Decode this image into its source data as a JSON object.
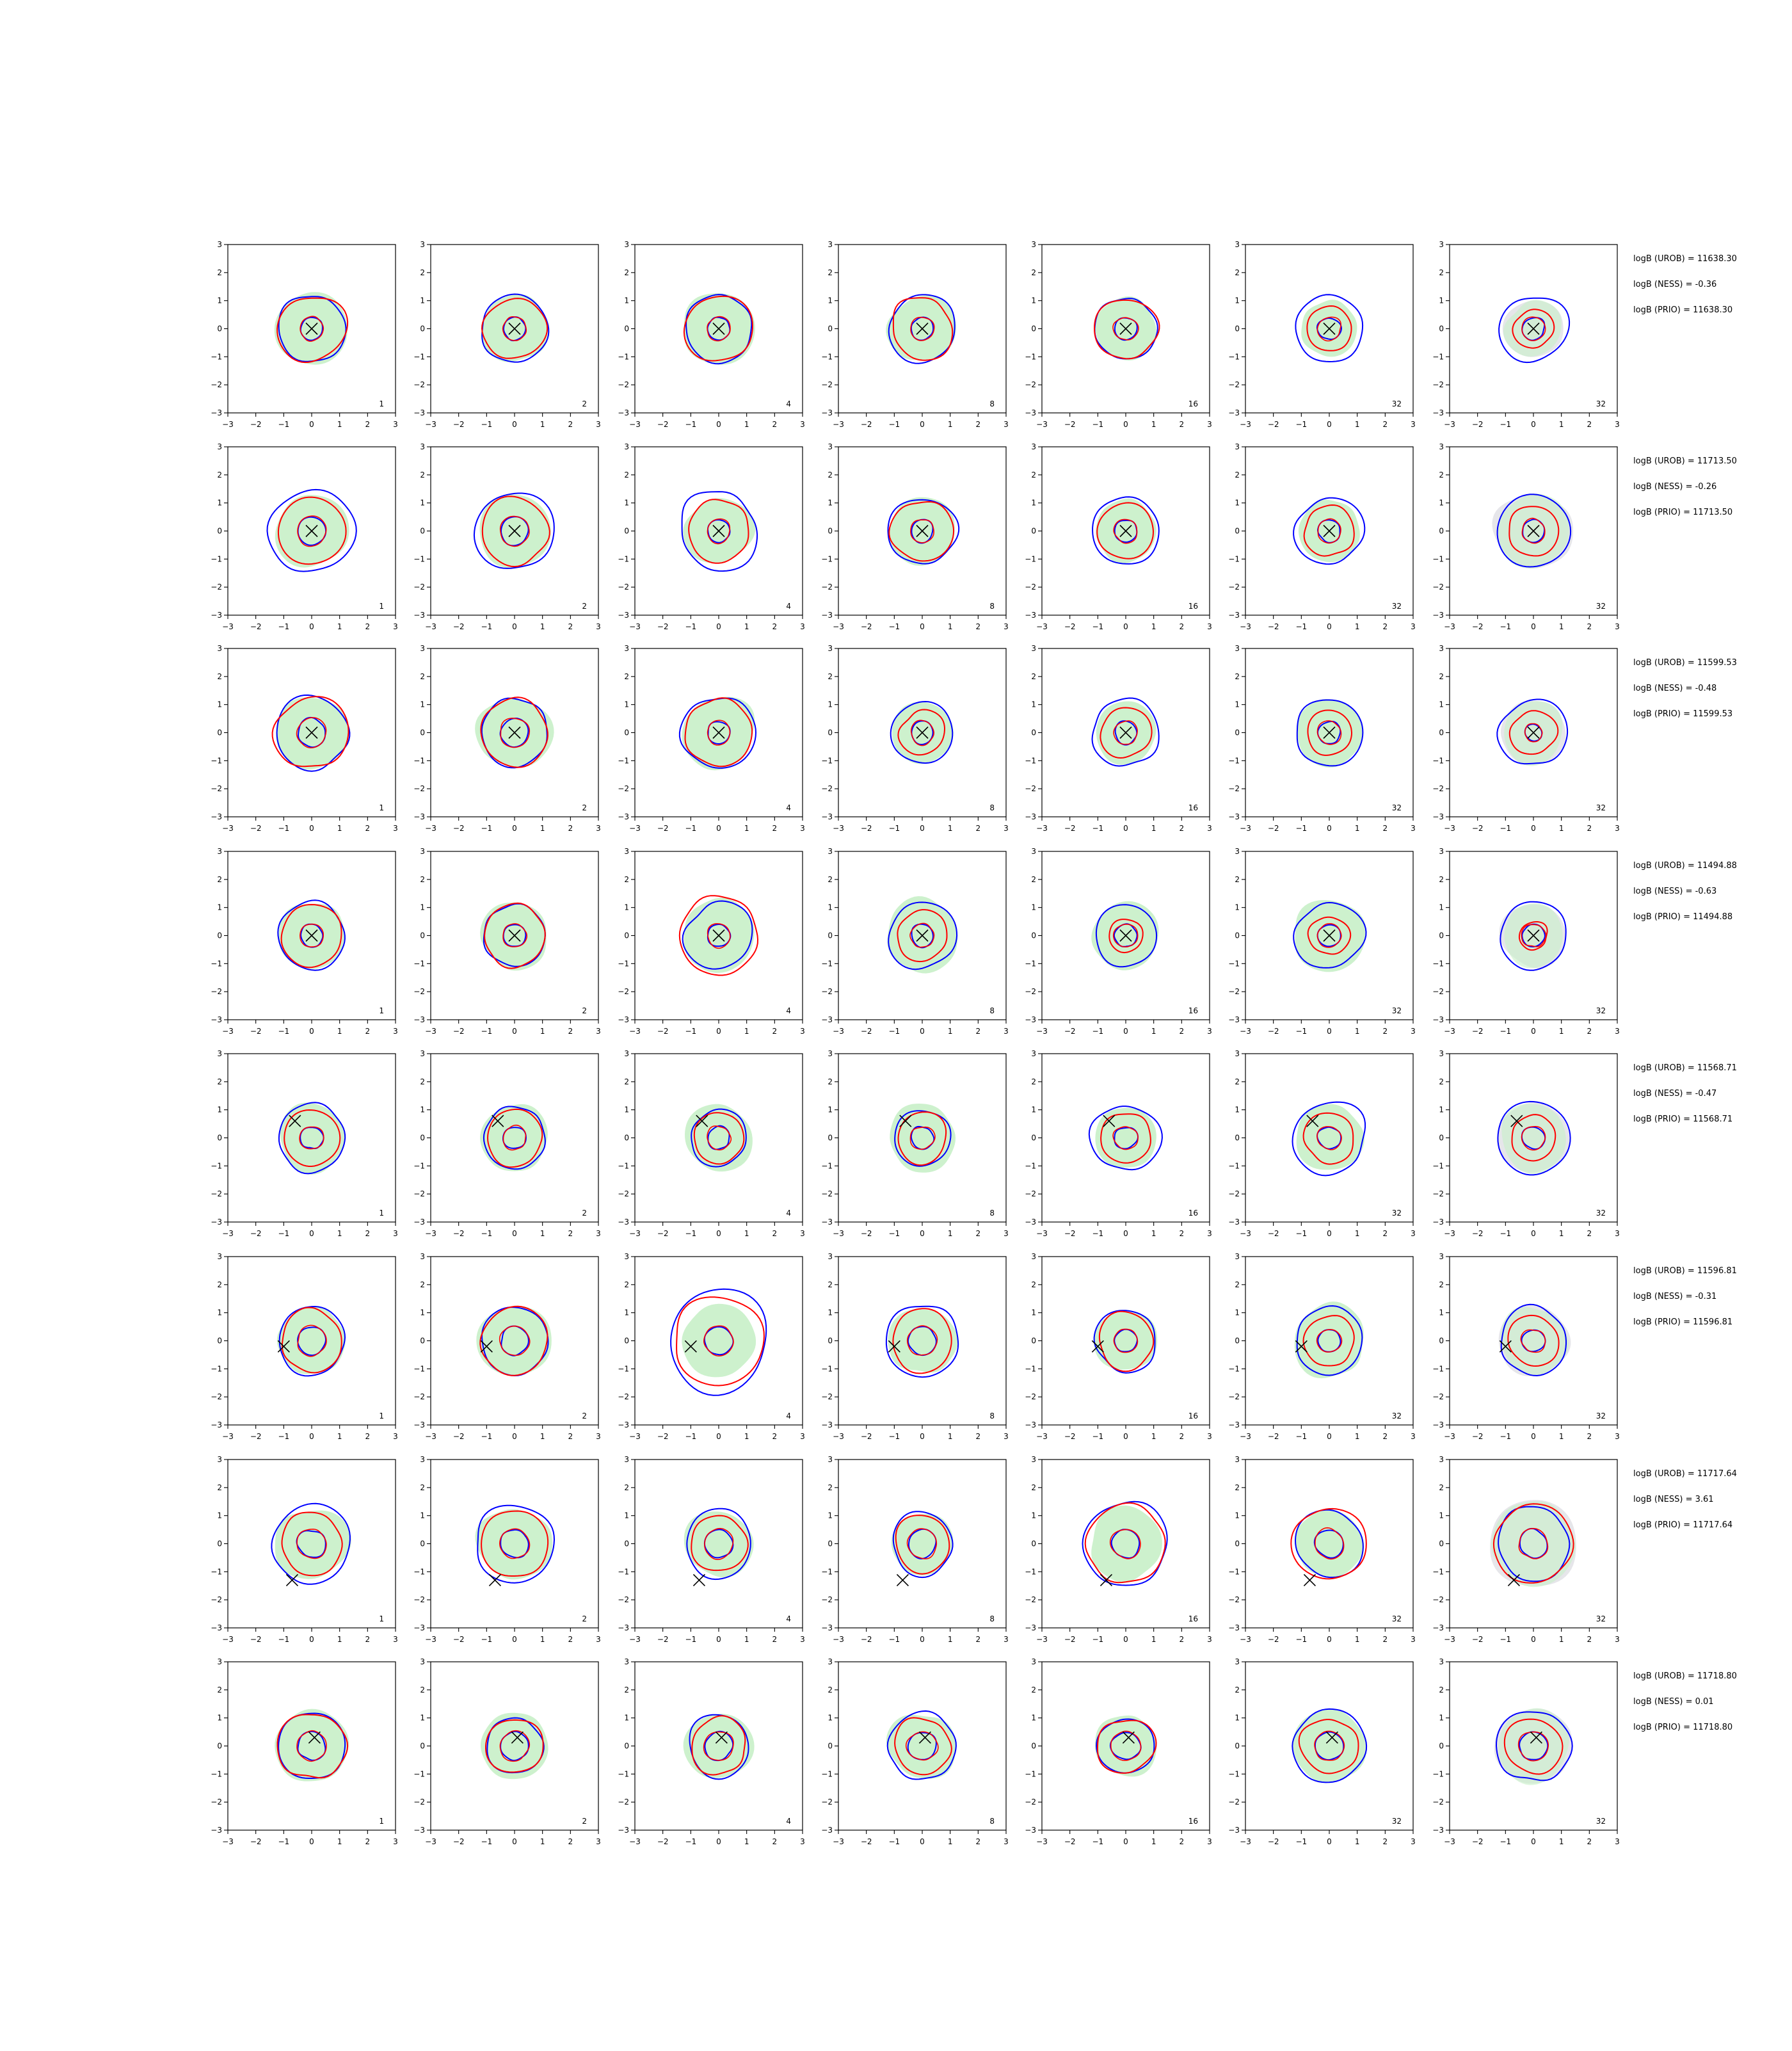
{
  "chart_data": {
    "type": "contour-grid",
    "panel_types": [
      "contour",
      "scatter-marker"
    ],
    "xlim": [
      -3,
      3
    ],
    "ylim": [
      -3,
      3
    ],
    "xticks": [
      "−3",
      "−2",
      "−1",
      "0",
      "1",
      "2",
      "3"
    ],
    "yticks": [
      "−3",
      "−2",
      "−1",
      "0",
      "1",
      "2",
      "3"
    ],
    "column_labels": [
      "1",
      "2",
      "4",
      "8",
      "16",
      "32",
      "32"
    ],
    "colors": {
      "blue": "#0000ff",
      "red": "#ff0000",
      "green_fill": "#c8f0c8",
      "grey_fill": "#e6e6ea",
      "marker": "#000000"
    },
    "rows": [
      {
        "marker": [
          0.0,
          0.0
        ],
        "annotations": [
          "logB (UROB) = 11638.30",
          "logB (NESS) = -0.36",
          "logB (PRIO) = 11638.30"
        ]
      },
      {
        "marker": [
          0.0,
          0.0
        ],
        "annotations": [
          "logB (UROB) = 11713.50",
          "logB (NESS) = -0.26",
          "logB (PRIO) = 11713.50"
        ]
      },
      {
        "marker": [
          0.0,
          0.0
        ],
        "annotations": [
          "logB (UROB) = 11599.53",
          "logB (NESS) = -0.48",
          "logB (PRIO) = 11599.53"
        ]
      },
      {
        "marker": [
          0.0,
          0.0
        ],
        "annotations": [
          "logB (UROB) = 11494.88",
          "logB (NESS) = -0.63",
          "logB (PRIO) = 11494.88"
        ]
      },
      {
        "marker": [
          -0.6,
          0.6
        ],
        "annotations": [
          "logB (UROB) = 11568.71",
          "logB (NESS) = -0.47",
          "logB (PRIO) = 11568.71"
        ]
      },
      {
        "marker": [
          -1.0,
          -0.2
        ],
        "annotations": [
          "logB (UROB) = 11596.81",
          "logB (NESS) = -0.31",
          "logB (PRIO) = 11596.81"
        ]
      },
      {
        "marker": [
          -0.7,
          -1.3
        ],
        "annotations": [
          "logB (UROB) = 11717.64",
          "logB (NESS) = 3.61",
          "logB (PRIO) = 11717.64"
        ]
      },
      {
        "marker": [
          0.1,
          0.3
        ],
        "annotations": [
          "logB (UROB) = 11718.80",
          "logB (NESS) = 0.01",
          "logB (PRIO) = 11718.80"
        ]
      }
    ],
    "contour_radii": {
      "blue_outer": [
        [
          1.2,
          1.2,
          1.2,
          1.2,
          1.1,
          1.2,
          1.2
        ],
        [
          1.5,
          1.4,
          1.4,
          1.2,
          1.2,
          1.2,
          1.3
        ],
        [
          1.3,
          1.2,
          1.3,
          1.1,
          1.2,
          1.2,
          1.2
        ],
        [
          1.2,
          1.1,
          1.2,
          1.2,
          1.1,
          1.2,
          1.2
        ],
        [
          1.2,
          1.1,
          1.0,
          1.0,
          1.2,
          1.3,
          1.3
        ],
        [
          1.2,
          1.2,
          1.8,
          1.3,
          1.1,
          1.2,
          1.2
        ],
        [
          1.4,
          1.4,
          1.2,
          1.1,
          1.5,
          1.2,
          1.3
        ],
        [
          1.2,
          1.0,
          1.1,
          1.2,
          1.0,
          1.3,
          1.3
        ]
      ],
      "red_outer": [
        [
          1.2,
          1.1,
          1.2,
          1.1,
          1.1,
          0.8,
          0.7
        ],
        [
          1.2,
          1.2,
          1.1,
          1.1,
          1.0,
          0.9,
          0.9
        ],
        [
          1.3,
          1.2,
          1.2,
          0.8,
          0.9,
          0.8,
          0.8
        ],
        [
          1.1,
          1.1,
          1.4,
          0.9,
          0.6,
          0.7,
          0.5
        ],
        [
          1.0,
          1.0,
          0.9,
          0.9,
          0.9,
          0.9,
          0.8
        ],
        [
          1.1,
          1.2,
          1.6,
          1.1,
          1.0,
          0.9,
          0.9
        ],
        [
          1.1,
          1.2,
          1.0,
          1.0,
          1.4,
          1.3,
          1.4
        ],
        [
          1.2,
          1.0,
          1.0,
          1.0,
          1.0,
          1.0,
          1.0
        ]
      ],
      "inner": [
        [
          0.4,
          0.4,
          0.4,
          0.4,
          0.4,
          0.4,
          0.4
        ],
        [
          0.5,
          0.5,
          0.4,
          0.4,
          0.4,
          0.4,
          0.4
        ],
        [
          0.5,
          0.5,
          0.4,
          0.4,
          0.4,
          0.4,
          0.3
        ],
        [
          0.4,
          0.4,
          0.4,
          0.4,
          0.4,
          0.4,
          0.4
        ],
        [
          0.4,
          0.4,
          0.4,
          0.4,
          0.4,
          0.4,
          0.4
        ],
        [
          0.5,
          0.5,
          0.5,
          0.5,
          0.4,
          0.4,
          0.4
        ],
        [
          0.5,
          0.5,
          0.5,
          0.5,
          0.5,
          0.5,
          0.5
        ],
        [
          0.5,
          0.5,
          0.5,
          0.5,
          0.5,
          0.5,
          0.5
        ]
      ],
      "fill": [
        [
          1.3,
          1.2,
          1.3,
          1.2,
          1.1,
          1.0,
          1.0
        ],
        [
          1.3,
          1.3,
          1.2,
          1.2,
          1.1,
          1.1,
          1.3
        ],
        [
          1.3,
          1.3,
          1.3,
          1.1,
          1.1,
          1.2,
          1.1
        ],
        [
          1.2,
          1.2,
          1.3,
          1.3,
          1.2,
          1.3,
          1.1
        ],
        [
          1.2,
          1.2,
          1.2,
          1.2,
          1.1,
          1.2,
          1.2
        ],
        [
          1.2,
          1.3,
          1.3,
          1.2,
          1.1,
          1.3,
          1.2
        ],
        [
          1.3,
          1.3,
          1.2,
          1.1,
          1.3,
          1.2,
          1.5
        ],
        [
          1.3,
          1.2,
          1.2,
          1.2,
          1.1,
          1.3,
          1.3
        ]
      ]
    }
  }
}
